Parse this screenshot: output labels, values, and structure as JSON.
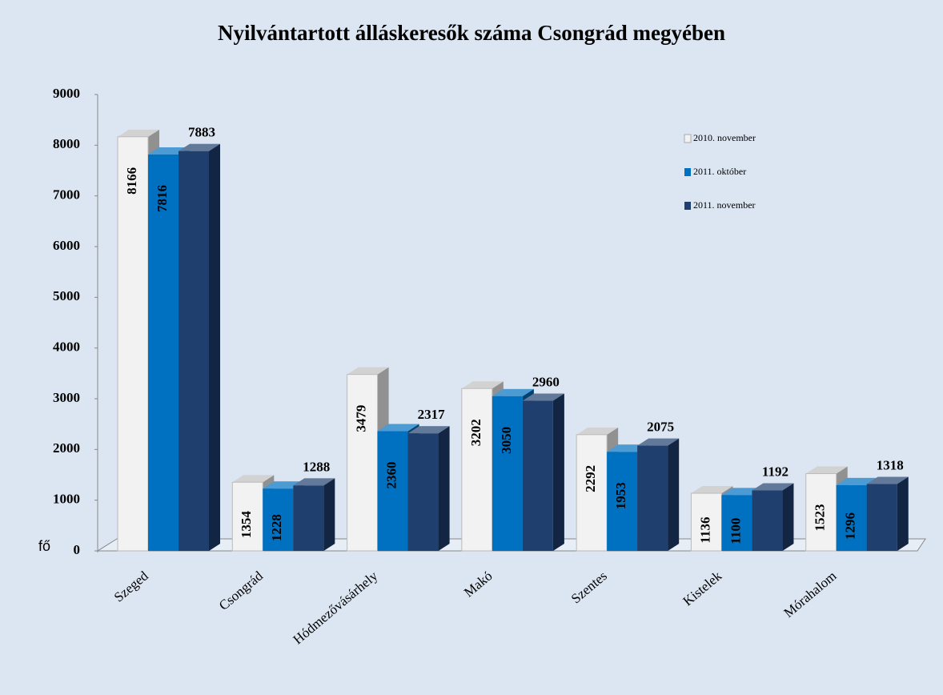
{
  "chart_data": {
    "type": "bar3d",
    "title": "Nyilvántartott álláskeresők száma Csongrád megyében",
    "y_label": "fő",
    "categories": [
      "Szeged",
      "Csongrád",
      "Hódmezővásárhely",
      "Makó",
      "Szentes",
      "Kistelek",
      "Mórahalom"
    ],
    "series": [
      {
        "name": "2010. november",
        "color": "#f2f2f2",
        "values": [
          8166,
          1354,
          3479,
          3202,
          2292,
          1136,
          1523
        ]
      },
      {
        "name": "2011. október",
        "color": "#0070c0",
        "values": [
          7816,
          1228,
          2360,
          3050,
          1953,
          1100,
          1296
        ]
      },
      {
        "name": "2011. november",
        "color": "#1f3f6e",
        "values": [
          7883,
          1288,
          2317,
          2960,
          2075,
          1192,
          1318
        ]
      }
    ],
    "ylim": [
      0,
      9000
    ],
    "yticks": [
      0,
      1000,
      2000,
      3000,
      4000,
      5000,
      6000,
      7000,
      8000,
      9000
    ],
    "legend": "top-right"
  }
}
